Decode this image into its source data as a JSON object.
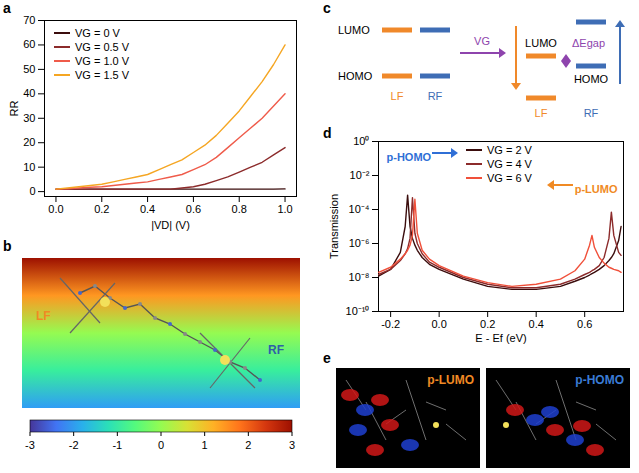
{
  "panel_letters": [
    "a",
    "b",
    "c",
    "d",
    "e"
  ],
  "chart_data": [
    {
      "type": "line",
      "x_label": "|VD| (V)",
      "y_label": "RR",
      "legend": "top-left",
      "x": [
        0,
        0.05,
        0.1,
        0.15,
        0.2,
        0.25,
        0.3,
        0.35,
        0.4,
        0.45,
        0.5,
        0.55,
        0.6,
        0.65,
        0.7,
        0.75,
        0.8,
        0.85,
        0.9,
        0.95,
        1.0
      ],
      "series": [
        {
          "name": "VG = 0 V",
          "color": "#3b0d0d",
          "values": [
            1,
            1,
            1,
            1,
            1,
            1,
            1,
            1,
            1,
            1,
            1,
            1,
            1,
            1,
            1,
            1,
            1,
            1,
            1,
            1,
            1.1
          ]
        },
        {
          "name": "VG = 0.5 V",
          "color": "#8c2b2b",
          "values": [
            1,
            1,
            1,
            1,
            1,
            1,
            1,
            1,
            1,
            1,
            1,
            1.5,
            2,
            3,
            4.5,
            6,
            8,
            10,
            12,
            15,
            18
          ]
        },
        {
          "name": "VG = 1.0 V",
          "color": "#ef5b4a",
          "values": [
            1,
            1.2,
            1.5,
            1.8,
            2,
            2.5,
            3,
            3.5,
            4,
            5,
            6,
            7,
            9,
            11,
            14,
            18,
            22,
            26,
            30,
            35,
            40
          ]
        },
        {
          "name": "VG = 1.5 V",
          "color": "#f5a623",
          "values": [
            1,
            1.5,
            2,
            2.5,
            3,
            4,
            5,
            6,
            7,
            9,
            11,
            13,
            16,
            19,
            23,
            28,
            33,
            39,
            45,
            52,
            60
          ]
        }
      ],
      "xlim": [
        -0.05,
        1.05
      ],
      "xticks": [
        {
          "value": 0,
          "label": "0.0"
        },
        0.2,
        0.4,
        0.6,
        0.8,
        {
          "value": 1,
          "label": "1.0"
        }
      ],
      "ylim": [
        -2,
        70
      ],
      "yticks": [
        0,
        10,
        20,
        30,
        40,
        50,
        60,
        70
      ]
    },
    {
      "type": "line",
      "x_label": "E - Ef (eV)",
      "y_label": "Transmission",
      "log": "y",
      "legend": "top",
      "x": [
        -0.25,
        -0.2,
        -0.16,
        -0.14,
        -0.13,
        -0.12,
        -0.11,
        -0.1,
        -0.09,
        -0.07,
        -0.04,
        0,
        0.1,
        0.2,
        0.3,
        0.4,
        0.5,
        0.56,
        0.6,
        0.62,
        0.63,
        0.64,
        0.66,
        0.68,
        0.7,
        0.71,
        0.72,
        0.74,
        0.75
      ],
      "series": [
        {
          "name": "VG = 2 V",
          "color": "#3b0d0d",
          "values": [
            1.2e-08,
            3e-08,
            3e-07,
            1e-05,
            0.0007,
            1e-05,
            2e-06,
            8e-07,
            4e-07,
            1.5e-07,
            6e-08,
            3e-08,
            8e-09,
            3e-09,
            2e-09,
            2e-09,
            3e-09,
            6e-09,
            1e-08,
            1.4e-08,
            1.7e-08,
            2e-08,
            3e-08,
            5e-08,
            1e-07,
            1.5e-07,
            2.5e-07,
            1.5e-06,
            1e-05
          ]
        },
        {
          "name": "VG = 4 V",
          "color": "#8c2b2b",
          "values": [
            1.5e-08,
            3e-08,
            1e-07,
            2.5e-07,
            5e-07,
            2e-06,
            0.0005,
            4e-06,
            1e-06,
            2.5e-07,
            8e-08,
            4e-08,
            1e-08,
            4e-09,
            2.5e-09,
            2.5e-09,
            4e-09,
            8e-09,
            1.5e-08,
            2e-08,
            2.5e-08,
            3e-08,
            5e-08,
            1.5e-07,
            2e-06,
            7e-05,
            3e-06,
            3e-07,
            2e-07
          ]
        },
        {
          "name": "VG = 6 V",
          "color": "#f0503a",
          "values": [
            2e-08,
            4e-08,
            1.2e-07,
            2.5e-07,
            4e-07,
            8e-07,
            3e-06,
            0.0004,
            4e-06,
            4e-07,
            1.2e-07,
            5e-08,
            1.2e-08,
            5e-09,
            3e-09,
            4e-09,
            8e-09,
            2.5e-08,
            1.2e-07,
            8e-07,
            3e-06,
            6e-07,
            1.5e-07,
            7e-08,
            4e-08,
            3.5e-08,
            3e-08,
            2.5e-08,
            2e-08
          ]
        }
      ],
      "annotations": [
        {
          "text": "p-HOMO",
          "color": "#2f6fd6"
        },
        {
          "text": "p-LUMO",
          "color": "#f08a24"
        }
      ],
      "xlim": [
        -0.25,
        0.76
      ],
      "xticks": [
        -0.2,
        {
          "value": 0,
          "label": "0.0"
        },
        0.2,
        0.4,
        0.6
      ],
      "ylim": [
        1e-10,
        1
      ],
      "yticks": [
        {
          "value": 1e-10,
          "label": "10⁻¹⁰"
        },
        {
          "value": 1e-08,
          "label": "10⁻⁸"
        },
        {
          "value": 1e-06,
          "label": "10⁻⁶"
        },
        {
          "value": 0.0001,
          "label": "10⁻⁴"
        },
        {
          "value": 0.01,
          "label": "10⁻²"
        },
        {
          "value": 1,
          "label": "10⁰"
        }
      ]
    }
  ],
  "panel_b": {
    "labels": [
      {
        "text": "LF",
        "color": "#f08a24"
      },
      {
        "text": "RF",
        "color": "#2f5fa8"
      }
    ],
    "colorbar": {
      "range": [
        -3,
        3
      ],
      "ticks": [
        -3,
        -2,
        -1,
        0,
        1,
        2,
        3
      ]
    }
  },
  "panel_c": {
    "fragment_colors": [
      "#f0892a",
      "#3e6db5"
    ],
    "left": {
      "levels": [
        "LUMO",
        "HOMO"
      ],
      "fragments": [
        "LF",
        "RF"
      ]
    },
    "arrow_label": "VG",
    "right": {
      "levels": [
        "LUMO",
        "HOMO"
      ],
      "fragments": [
        "LF",
        "RF"
      ],
      "gap_label": "ΔEgap"
    }
  },
  "panel_e": {
    "panels": [
      {
        "label": "p-LUMO",
        "color": "#f08a24"
      },
      {
        "label": "p-HOMO",
        "color": "#3a7bd5"
      }
    ]
  }
}
